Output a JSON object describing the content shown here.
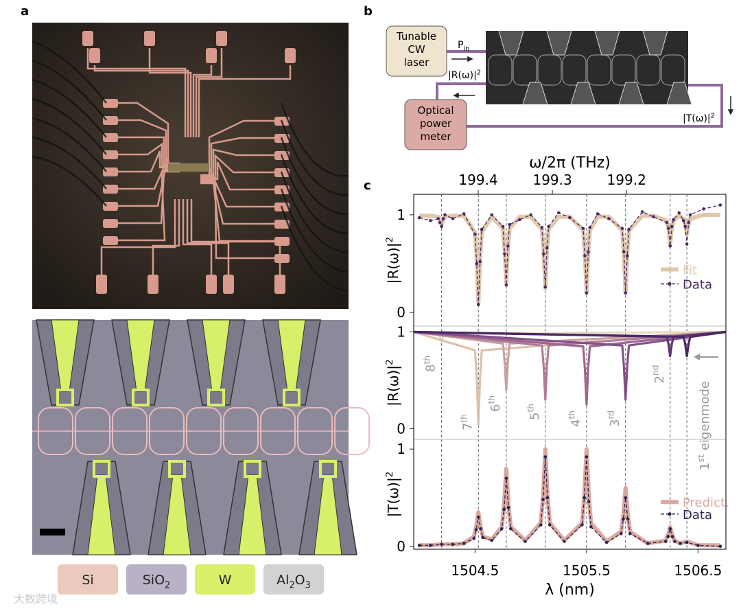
{
  "panel_labels": [
    "a",
    "b",
    "c"
  ],
  "materials": [
    {
      "color": "#e9cabd",
      "segments": [
        {
          "base": "Si"
        }
      ]
    },
    {
      "color": "#b9b1c5",
      "segments": [
        {
          "base": "SiO",
          "sub": "2"
        }
      ]
    },
    {
      "color": "#d9f06b",
      "segments": [
        {
          "base": "W"
        }
      ]
    },
    {
      "color": "#d2d2d2",
      "segments": [
        {
          "base": "Al",
          "sub": "2"
        },
        {
          "base": "O",
          "sub": "3"
        }
      ]
    }
  ],
  "diagram": {
    "laser": [
      "Tunable",
      "CW",
      "laser"
    ],
    "input": {
      "base": "P",
      "sub": "in"
    },
    "reflection": {
      "base": "|R(ω)|",
      "sup": "2"
    },
    "transmission": {
      "base": "|T(ω)|",
      "sup": "2"
    },
    "meter": [
      "Optical",
      "power",
      "meter"
    ]
  },
  "x_axis": {
    "label": "λ (nm)",
    "xlim": [
      1503.95,
      1506.75
    ],
    "xticks": [
      1504.5,
      1505.5,
      1506.5
    ],
    "vlines": [
      1504.2,
      1504.53,
      1504.78,
      1505.13,
      1505.5,
      1505.85,
      1506.25,
      1506.4
    ]
  },
  "top_axis": {
    "label": "ω/2π (THz)",
    "x2lim": [
      199.487,
      199.066
    ],
    "x2ticks": [
      199.4,
      199.3,
      199.2
    ]
  },
  "chart_data": [
    {
      "type": "line",
      "ylabel": {
        "base": "|R(ω)|",
        "sup": "2"
      },
      "ylim": [
        -0.14,
        1.21
      ],
      "yticks": [
        0,
        1
      ],
      "legend": "right",
      "x": [
        1504.0,
        1504.1,
        1504.17,
        1504.185,
        1504.2,
        1504.215,
        1504.23,
        1504.3,
        1504.4,
        1504.5,
        1504.515,
        1504.53,
        1504.545,
        1504.56,
        1504.65,
        1504.75,
        1504.765,
        1504.78,
        1504.795,
        1504.81,
        1504.9,
        1505.0,
        1505.1,
        1505.115,
        1505.13,
        1505.145,
        1505.16,
        1505.25,
        1505.35,
        1505.47,
        1505.485,
        1505.5,
        1505.515,
        1505.53,
        1505.6,
        1505.7,
        1505.82,
        1505.835,
        1505.85,
        1505.865,
        1505.88,
        1506.0,
        1506.1,
        1506.22,
        1506.235,
        1506.25,
        1506.265,
        1506.28,
        1506.33,
        1506.37,
        1506.385,
        1506.4,
        1506.415,
        1506.43,
        1506.55,
        1506.7
      ],
      "series": [
        {
          "name": "Fit",
          "color": "#e0c8ae",
          "values": [
            0.99,
            0.99,
            0.98,
            0.95,
            0.9,
            0.95,
            0.98,
            0.99,
            0.99,
            0.82,
            0.55,
            0.1,
            0.55,
            0.82,
            0.98,
            0.86,
            0.65,
            0.3,
            0.65,
            0.86,
            0.98,
            0.98,
            0.85,
            0.63,
            0.25,
            0.63,
            0.85,
            0.98,
            0.98,
            0.84,
            0.6,
            0.2,
            0.6,
            0.84,
            0.98,
            0.98,
            0.84,
            0.6,
            0.2,
            0.6,
            0.84,
            0.99,
            0.99,
            0.94,
            0.85,
            0.7,
            0.85,
            0.94,
            0.99,
            0.96,
            0.9,
            0.8,
            0.9,
            0.96,
            1.0,
            1.0
          ]
        },
        {
          "name": "Data",
          "color": "#4b2a66",
          "marker": "dot",
          "values": [
            0.97,
            0.94,
            0.96,
            0.92,
            0.88,
            0.96,
            1.0,
            0.96,
            1.01,
            0.8,
            0.5,
            0.08,
            0.52,
            0.85,
            1.0,
            0.88,
            0.6,
            0.28,
            0.68,
            0.9,
            0.95,
            1.0,
            0.87,
            0.6,
            0.26,
            0.66,
            0.88,
            1.02,
            0.97,
            0.86,
            0.58,
            0.2,
            0.62,
            0.87,
            1.01,
            0.96,
            0.86,
            0.62,
            0.2,
            0.58,
            0.85,
            1.03,
            0.98,
            0.92,
            0.86,
            0.68,
            0.88,
            0.95,
            1.02,
            0.94,
            0.88,
            0.7,
            0.92,
            1.0,
            1.06,
            1.1
          ]
        }
      ]
    },
    {
      "type": "line",
      "ylabel": {
        "base": "|R(ω)|",
        "sup": "2"
      },
      "ylim": [
        -0.11,
        1.06
      ],
      "yticks": [
        0,
        1
      ],
      "series": [
        {
          "name": "8",
          "sup": "th",
          "color": "#e9dac3",
          "x": [
            1503.95,
            1504.17,
            1504.185,
            1504.2,
            1504.215,
            1504.23,
            1506.75
          ],
          "values": [
            1,
            0.98,
            0.95,
            0.9,
            0.95,
            0.98,
            1
          ]
        },
        {
          "name": "7",
          "sup": "th",
          "color": "#dcc2ac",
          "x": [
            1503.95,
            1504.5,
            1504.515,
            1504.53,
            1504.545,
            1504.56,
            1506.75
          ],
          "values": [
            1,
            0.81,
            0.525,
            0.05,
            0.525,
            0.81,
            1
          ]
        },
        {
          "name": "6",
          "sup": "th",
          "color": "#c9a1a1",
          "x": [
            1503.95,
            1504.75,
            1504.765,
            1504.78,
            1504.795,
            1504.81,
            1506.75
          ],
          "values": [
            1,
            0.88,
            0.7,
            0.4,
            0.7,
            0.88,
            1
          ]
        },
        {
          "name": "5",
          "sup": "th",
          "color": "#b07d97",
          "x": [
            1503.95,
            1505.1,
            1505.115,
            1505.13,
            1505.145,
            1505.16,
            1506.75
          ],
          "values": [
            1,
            0.86,
            0.65,
            0.3,
            0.65,
            0.86,
            1
          ]
        },
        {
          "name": "4",
          "sup": "th",
          "color": "#9c6791",
          "x": [
            1503.95,
            1505.47,
            1505.485,
            1505.5,
            1505.515,
            1505.53,
            1506.75
          ],
          "values": [
            1,
            0.85,
            0.625,
            0.25,
            0.625,
            0.85,
            1
          ]
        },
        {
          "name": "3",
          "sup": "rd",
          "color": "#845087",
          "x": [
            1503.95,
            1505.82,
            1505.835,
            1505.85,
            1505.865,
            1505.88,
            1506.75
          ],
          "values": [
            1,
            0.86,
            0.65,
            0.3,
            0.65,
            0.86,
            1
          ]
        },
        {
          "name": "2",
          "sup": "nd",
          "color": "#5f3571",
          "x": [
            1503.95,
            1506.22,
            1506.235,
            1506.25,
            1506.265,
            1506.28,
            1506.75
          ],
          "values": [
            1,
            0.95,
            0.875,
            0.75,
            0.875,
            0.95,
            1
          ]
        },
        {
          "name": "1",
          "sup": "st",
          "suffix": "eigenmode",
          "color": "#4a2866",
          "x": [
            1503.95,
            1506.37,
            1506.385,
            1506.4,
            1506.415,
            1506.43,
            1506.75
          ],
          "values": [
            1,
            0.95,
            0.875,
            0.75,
            0.875,
            0.95,
            1
          ]
        }
      ]
    },
    {
      "type": "line",
      "ylabel": {
        "base": "|T(ω)|",
        "sup": "2"
      },
      "ylim": [
        -0.03,
        1.1
      ],
      "yticks": [
        0,
        1
      ],
      "legend": "right",
      "x": [
        1504.0,
        1504.1,
        1504.2,
        1504.3,
        1504.4,
        1504.49,
        1504.51,
        1504.53,
        1504.55,
        1504.57,
        1504.65,
        1504.74,
        1504.76,
        1504.78,
        1504.8,
        1504.82,
        1504.95,
        1505.09,
        1505.11,
        1505.13,
        1505.15,
        1505.17,
        1505.3,
        1505.46,
        1505.48,
        1505.5,
        1505.52,
        1505.54,
        1505.68,
        1505.81,
        1505.83,
        1505.85,
        1505.87,
        1505.89,
        1506.05,
        1506.21,
        1506.23,
        1506.25,
        1506.27,
        1506.29,
        1506.34,
        1506.4,
        1506.5,
        1506.7
      ],
      "series": [
        {
          "name": "Predict.",
          "color": "#dba89f",
          "values": [
            0.01,
            0.01,
            0.02,
            0.02,
            0.03,
            0.1,
            0.2,
            0.35,
            0.2,
            0.1,
            0.07,
            0.2,
            0.42,
            0.8,
            0.42,
            0.2,
            0.06,
            0.24,
            0.52,
            1.0,
            0.52,
            0.24,
            0.06,
            0.24,
            0.52,
            1.0,
            0.52,
            0.24,
            0.05,
            0.15,
            0.32,
            0.6,
            0.32,
            0.15,
            0.03,
            0.06,
            0.11,
            0.2,
            0.11,
            0.06,
            0.03,
            0.05,
            0.01,
            0.01
          ]
        },
        {
          "name": "Data",
          "color": "#2d2350",
          "marker": "dot",
          "values": [
            0.01,
            0.01,
            0.02,
            0.02,
            0.03,
            0.08,
            0.17,
            0.3,
            0.18,
            0.09,
            0.06,
            0.18,
            0.38,
            0.7,
            0.4,
            0.18,
            0.05,
            0.22,
            0.48,
            0.92,
            0.5,
            0.22,
            0.05,
            0.22,
            0.5,
            0.92,
            0.46,
            0.2,
            0.04,
            0.13,
            0.28,
            0.5,
            0.28,
            0.13,
            0.03,
            0.05,
            0.1,
            0.18,
            0.1,
            0.05,
            0.03,
            0.04,
            0.01,
            0.0
          ]
        }
      ]
    }
  ],
  "watermark": "大数跨境"
}
